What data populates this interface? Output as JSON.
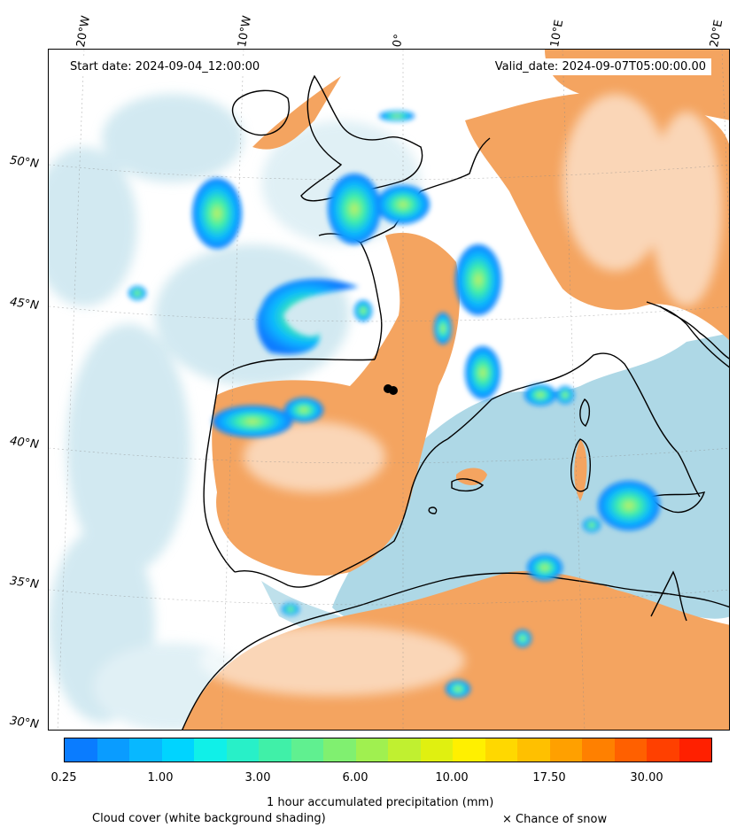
{
  "map": {
    "start_date": "Start date: 2024-09-04_12:00:00",
    "valid_date": "Valid_date: 2024-09-07T05:00:00.00",
    "lon_labels": [
      "20°W",
      "10°W",
      "0°",
      "10°E",
      "20°E"
    ],
    "lat_labels": [
      "50°N",
      "45°N",
      "40°N",
      "35°N",
      "30°N"
    ]
  },
  "colorbar": {
    "tick_labels": [
      "0.25",
      "1.00",
      "3.00",
      "6.00",
      "10.00",
      "17.50",
      "30.00"
    ],
    "colors": [
      "#0a7cff",
      "#0a9cff",
      "#08b8ff",
      "#00d4ff",
      "#10f0e8",
      "#28f0c8",
      "#40f0a8",
      "#60f090",
      "#80f070",
      "#a0f050",
      "#c0f030",
      "#e0f010",
      "#fff000",
      "#ffd800",
      "#ffc000",
      "#ffa000",
      "#ff8000",
      "#ff6000",
      "#ff4000",
      "#ff2000"
    ],
    "label": "1 hour accumulated precipitation (mm)"
  },
  "legend": {
    "cloud_cover": "Cloud cover (white background shading)",
    "snow": "× Chance of snow"
  },
  "palette": {
    "sea_cloud": "#aed8e6",
    "warm_land": "#f4a460",
    "coast": "#000000"
  }
}
